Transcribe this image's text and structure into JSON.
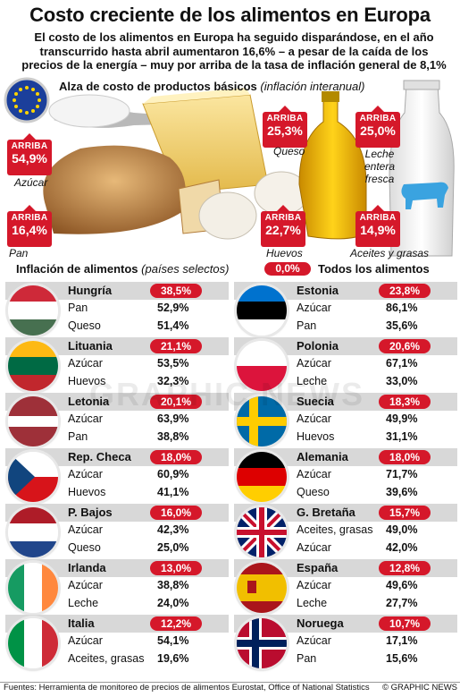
{
  "title": "Costo creciente de los alimentos en Europa",
  "subtitle": "El costo de los alimentos en Europa ha seguido disparándose, en el año transcurrido hasta abril aumentaron 16,6% – a pesar de la caída de los precios de la energía – muy por arriba de la tasa de inflación general de 8,1%",
  "hero": {
    "heading": "Alza de costo de productos básicos",
    "heading_note": "(inflación interanual)",
    "up_label": "ARRIBA",
    "items": [
      {
        "product": "Azúcar",
        "value": "54,9%"
      },
      {
        "product": "Queso",
        "value": "25,3%"
      },
      {
        "product": "Leche entera fresca",
        "value": "25,0%"
      },
      {
        "product": "Pan",
        "value": "16,4%"
      },
      {
        "product": "Huevos",
        "value": "22,7%"
      },
      {
        "product": "Aceites y grasas",
        "value": "14,9%"
      }
    ]
  },
  "inflation": {
    "heading": "Inflación de alimentos",
    "heading_note": "(países selectos)",
    "total_value": "0,0%",
    "total_label": "Todos los alimentos"
  },
  "countries": [
    {
      "name": "Hungría",
      "total": "38,5%",
      "flag": "hungary",
      "items": [
        {
          "label": "Pan",
          "value": "52,9%"
        },
        {
          "label": "Queso",
          "value": "51,4%"
        }
      ]
    },
    {
      "name": "Estonia",
      "total": "23,8%",
      "flag": "estonia",
      "items": [
        {
          "label": "Azúcar",
          "value": "86,1%"
        },
        {
          "label": "Pan",
          "value": "35,6%"
        }
      ]
    },
    {
      "name": "Lituania",
      "total": "21,1%",
      "flag": "lithuania",
      "items": [
        {
          "label": "Azúcar",
          "value": "53,5%"
        },
        {
          "label": "Huevos",
          "value": "32,3%"
        }
      ]
    },
    {
      "name": "Polonia",
      "total": "20,6%",
      "flag": "poland",
      "items": [
        {
          "label": "Azúcar",
          "value": "67,1%"
        },
        {
          "label": "Leche",
          "value": "33,0%"
        }
      ]
    },
    {
      "name": "Letonia",
      "total": "20,1%",
      "flag": "latvia",
      "items": [
        {
          "label": "Azúcar",
          "value": "63,9%"
        },
        {
          "label": "Pan",
          "value": "38,8%"
        }
      ]
    },
    {
      "name": "Suecia",
      "total": "18,3%",
      "flag": "sweden",
      "items": [
        {
          "label": "Azúcar",
          "value": "49,9%"
        },
        {
          "label": "Huevos",
          "value": "31,1%"
        }
      ]
    },
    {
      "name": "Rep. Checa",
      "total": "18,0%",
      "flag": "czech",
      "items": [
        {
          "label": "Azúcar",
          "value": "60,9%"
        },
        {
          "label": "Huevos",
          "value": "41,1%"
        }
      ]
    },
    {
      "name": "Alemania",
      "total": "18,0%",
      "flag": "germany",
      "items": [
        {
          "label": "Azúcar",
          "value": "71,7%"
        },
        {
          "label": "Queso",
          "value": "39,6%"
        }
      ]
    },
    {
      "name": "P. Bajos",
      "total": "16,0%",
      "flag": "netherlands",
      "items": [
        {
          "label": "Azúcar",
          "value": "42,3%"
        },
        {
          "label": "Queso",
          "value": "25,0%"
        }
      ]
    },
    {
      "name": "G. Bretaña",
      "total": "15,7%",
      "flag": "uk",
      "items": [
        {
          "label": "Aceites, grasas",
          "value": "49,0%"
        },
        {
          "label": "Azúcar",
          "value": "42,0%"
        }
      ]
    },
    {
      "name": "Irlanda",
      "total": "13,0%",
      "flag": "ireland",
      "items": [
        {
          "label": "Azúcar",
          "value": "38,8%"
        },
        {
          "label": "Leche",
          "value": "24,0%"
        }
      ]
    },
    {
      "name": "España",
      "total": "12,8%",
      "flag": "spain",
      "items": [
        {
          "label": "Azúcar",
          "value": "49,6%"
        },
        {
          "label": "Leche",
          "value": "27,7%"
        }
      ]
    },
    {
      "name": "Italia",
      "total": "12,2%",
      "flag": "italy",
      "items": [
        {
          "label": "Azúcar",
          "value": "54,1%"
        },
        {
          "label": "Aceites, grasas",
          "value": "19,6%"
        }
      ]
    },
    {
      "name": "Noruega",
      "total": "10,7%",
      "flag": "norway",
      "items": [
        {
          "label": "Azúcar",
          "value": "17,1%"
        },
        {
          "label": "Pan",
          "value": "15,6%"
        }
      ]
    }
  ],
  "watermark": "GRAPHIC NEWS",
  "footer": {
    "source": "Fuentes: Herramienta de monitoreo de precios de alimentos Eurostat, Office of National Statistics",
    "credit": "© GRAPHIC NEWS"
  },
  "colors": {
    "accent": "#d5182a",
    "bar": "#d8d8d8"
  }
}
